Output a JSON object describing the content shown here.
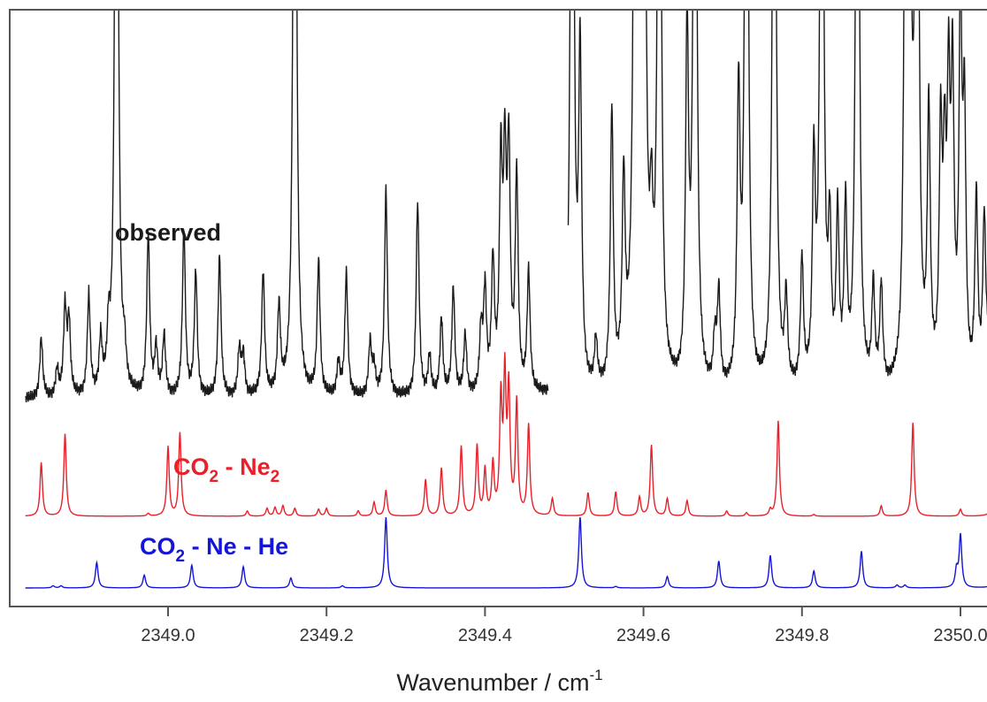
{
  "chart_data": {
    "type": "line",
    "title": "",
    "xlabel": "Wavenumber / cm",
    "xlabel_superscript": "-1",
    "ylabel": "",
    "xlim": [
      2348.83,
      2350.05
    ],
    "x_ticks": [
      2349.0,
      2349.2,
      2349.4,
      2349.6,
      2349.8,
      2350.0
    ],
    "x_tick_labels": [
      "2349.0",
      "2349.2",
      "2349.4",
      "2349.6",
      "2349.8",
      "2350.0"
    ],
    "y_axis_visible": false,
    "grid": false,
    "legend": "none",
    "labels": {
      "observed": "observed",
      "co2ne2_main": "CO",
      "co2ne2_sub1": "2",
      "co2ne2_mid": " - Ne",
      "co2ne2_sub2": "2",
      "co2nehe_main": "CO",
      "co2nehe_sub": "2",
      "co2nehe_rest": " - Ne - He"
    },
    "colors": {
      "observed": "#1a1a1a",
      "co2ne2": "#e8202a",
      "co2nehe": "#1515d8",
      "axes": "#555555"
    },
    "series": [
      {
        "key": "observed",
        "baseline": 0,
        "gap": [
          2349.48,
          2349.505
        ],
        "peaks": [
          [
            2348.84,
            0.18
          ],
          [
            2348.86,
            0.08
          ],
          [
            2348.87,
            0.26
          ],
          [
            2348.875,
            0.22
          ],
          [
            2348.9,
            0.3
          ],
          [
            2348.915,
            0.16
          ],
          [
            2348.925,
            0.16
          ],
          [
            2348.935,
            3.0
          ],
          [
            2348.945,
            0.1
          ],
          [
            2348.975,
            0.48
          ],
          [
            2348.985,
            0.14
          ],
          [
            2348.995,
            0.18
          ],
          [
            2349.02,
            0.5
          ],
          [
            2349.035,
            0.37
          ],
          [
            2349.065,
            0.42
          ],
          [
            2349.09,
            0.14
          ],
          [
            2349.095,
            0.12
          ],
          [
            2349.12,
            0.37
          ],
          [
            2349.14,
            0.26
          ],
          [
            2349.16,
            3.0
          ],
          [
            2349.19,
            0.4
          ],
          [
            2349.215,
            0.1
          ],
          [
            2349.225,
            0.37
          ],
          [
            2349.255,
            0.16
          ],
          [
            2349.26,
            0.08
          ],
          [
            2349.275,
            0.62
          ],
          [
            2349.315,
            0.58
          ],
          [
            2349.33,
            0.12
          ],
          [
            2349.345,
            0.23
          ],
          [
            2349.36,
            0.32
          ],
          [
            2349.375,
            0.18
          ],
          [
            2349.395,
            0.18
          ],
          [
            2349.4,
            0.3
          ],
          [
            2349.41,
            0.38
          ],
          [
            2349.42,
            0.65
          ],
          [
            2349.425,
            0.62
          ],
          [
            2349.43,
            0.68
          ],
          [
            2349.44,
            0.64
          ],
          [
            2349.455,
            0.36
          ],
          [
            2349.51,
            3.0
          ],
          [
            2349.52,
            0.98
          ],
          [
            2349.54,
            0.14
          ],
          [
            2349.56,
            0.82
          ],
          [
            2349.575,
            0.58
          ],
          [
            2349.59,
            3.0
          ],
          [
            2349.595,
            3.0
          ],
          [
            2349.6,
            3.0
          ],
          [
            2349.61,
            0.36
          ],
          [
            2349.62,
            3.0
          ],
          [
            2349.655,
            1.04
          ],
          [
            2349.665,
            3.0
          ],
          [
            2349.69,
            0.14
          ],
          [
            2349.695,
            0.28
          ],
          [
            2349.72,
            0.86
          ],
          [
            2349.73,
            3.0
          ],
          [
            2349.765,
            3.0
          ],
          [
            2349.78,
            0.26
          ],
          [
            2349.8,
            0.38
          ],
          [
            2349.815,
            0.64
          ],
          [
            2349.825,
            3.0
          ],
          [
            2349.835,
            0.43
          ],
          [
            2349.845,
            0.5
          ],
          [
            2349.855,
            0.52
          ],
          [
            2349.87,
            3.0
          ],
          [
            2349.89,
            0.3
          ],
          [
            2349.9,
            0.3
          ],
          [
            2349.93,
            1.1
          ],
          [
            2349.935,
            3.0
          ],
          [
            2349.945,
            3.0
          ],
          [
            2349.96,
            0.8
          ],
          [
            2349.975,
            0.72
          ],
          [
            2349.98,
            0.58
          ],
          [
            2349.985,
            0.8
          ],
          [
            2349.99,
            0.86
          ],
          [
            2350.0,
            1.12
          ],
          [
            2350.005,
            0.76
          ],
          [
            2350.02,
            0.56
          ],
          [
            2350.03,
            0.48
          ],
          [
            2350.04,
            0.9
          ],
          [
            2350.05,
            0.74
          ]
        ]
      },
      {
        "key": "co2ne2",
        "baseline": 0,
        "peaks": [
          [
            2348.84,
            0.62
          ],
          [
            2348.87,
            0.95
          ],
          [
            2348.975,
            0.03
          ],
          [
            2349.0,
            0.8
          ],
          [
            2349.015,
            0.96
          ],
          [
            2349.1,
            0.06
          ],
          [
            2349.125,
            0.09
          ],
          [
            2349.135,
            0.1
          ],
          [
            2349.145,
            0.12
          ],
          [
            2349.16,
            0.09
          ],
          [
            2349.19,
            0.08
          ],
          [
            2349.2,
            0.09
          ],
          [
            2349.24,
            0.06
          ],
          [
            2349.26,
            0.16
          ],
          [
            2349.275,
            0.3
          ],
          [
            2349.325,
            0.42
          ],
          [
            2349.345,
            0.55
          ],
          [
            2349.37,
            0.8
          ],
          [
            2349.39,
            0.8
          ],
          [
            2349.4,
            0.52
          ],
          [
            2349.41,
            0.58
          ],
          [
            2349.42,
            1.3
          ],
          [
            2349.425,
            1.55
          ],
          [
            2349.43,
            1.4
          ],
          [
            2349.44,
            1.3
          ],
          [
            2349.455,
            1.04
          ],
          [
            2349.485,
            0.2
          ],
          [
            2349.53,
            0.27
          ],
          [
            2349.565,
            0.28
          ],
          [
            2349.595,
            0.22
          ],
          [
            2349.61,
            0.82
          ],
          [
            2349.63,
            0.2
          ],
          [
            2349.655,
            0.18
          ],
          [
            2349.705,
            0.06
          ],
          [
            2349.73,
            0.04
          ],
          [
            2349.76,
            0.07
          ],
          [
            2349.77,
            1.1
          ],
          [
            2349.815,
            0.02
          ],
          [
            2349.9,
            0.12
          ],
          [
            2349.94,
            1.08
          ],
          [
            2350.0,
            0.08
          ],
          [
            2350.045,
            1.1
          ]
        ]
      },
      {
        "key": "co2nehe",
        "baseline": 0,
        "peaks": [
          [
            2348.855,
            0.03
          ],
          [
            2348.865,
            0.03
          ],
          [
            2348.91,
            0.36
          ],
          [
            2348.97,
            0.18
          ],
          [
            2349.03,
            0.32
          ],
          [
            2349.095,
            0.3
          ],
          [
            2349.155,
            0.14
          ],
          [
            2349.22,
            0.03
          ],
          [
            2349.275,
            1.0
          ],
          [
            2349.52,
            1.0
          ],
          [
            2349.565,
            0.02
          ],
          [
            2349.63,
            0.16
          ],
          [
            2349.695,
            0.38
          ],
          [
            2349.76,
            0.46
          ],
          [
            2349.815,
            0.24
          ],
          [
            2349.875,
            0.52
          ],
          [
            2349.92,
            0.04
          ],
          [
            2349.93,
            0.04
          ],
          [
            2349.995,
            0.24
          ],
          [
            2350.0,
            0.74
          ],
          [
            2350.045,
            0.52
          ]
        ]
      }
    ]
  }
}
